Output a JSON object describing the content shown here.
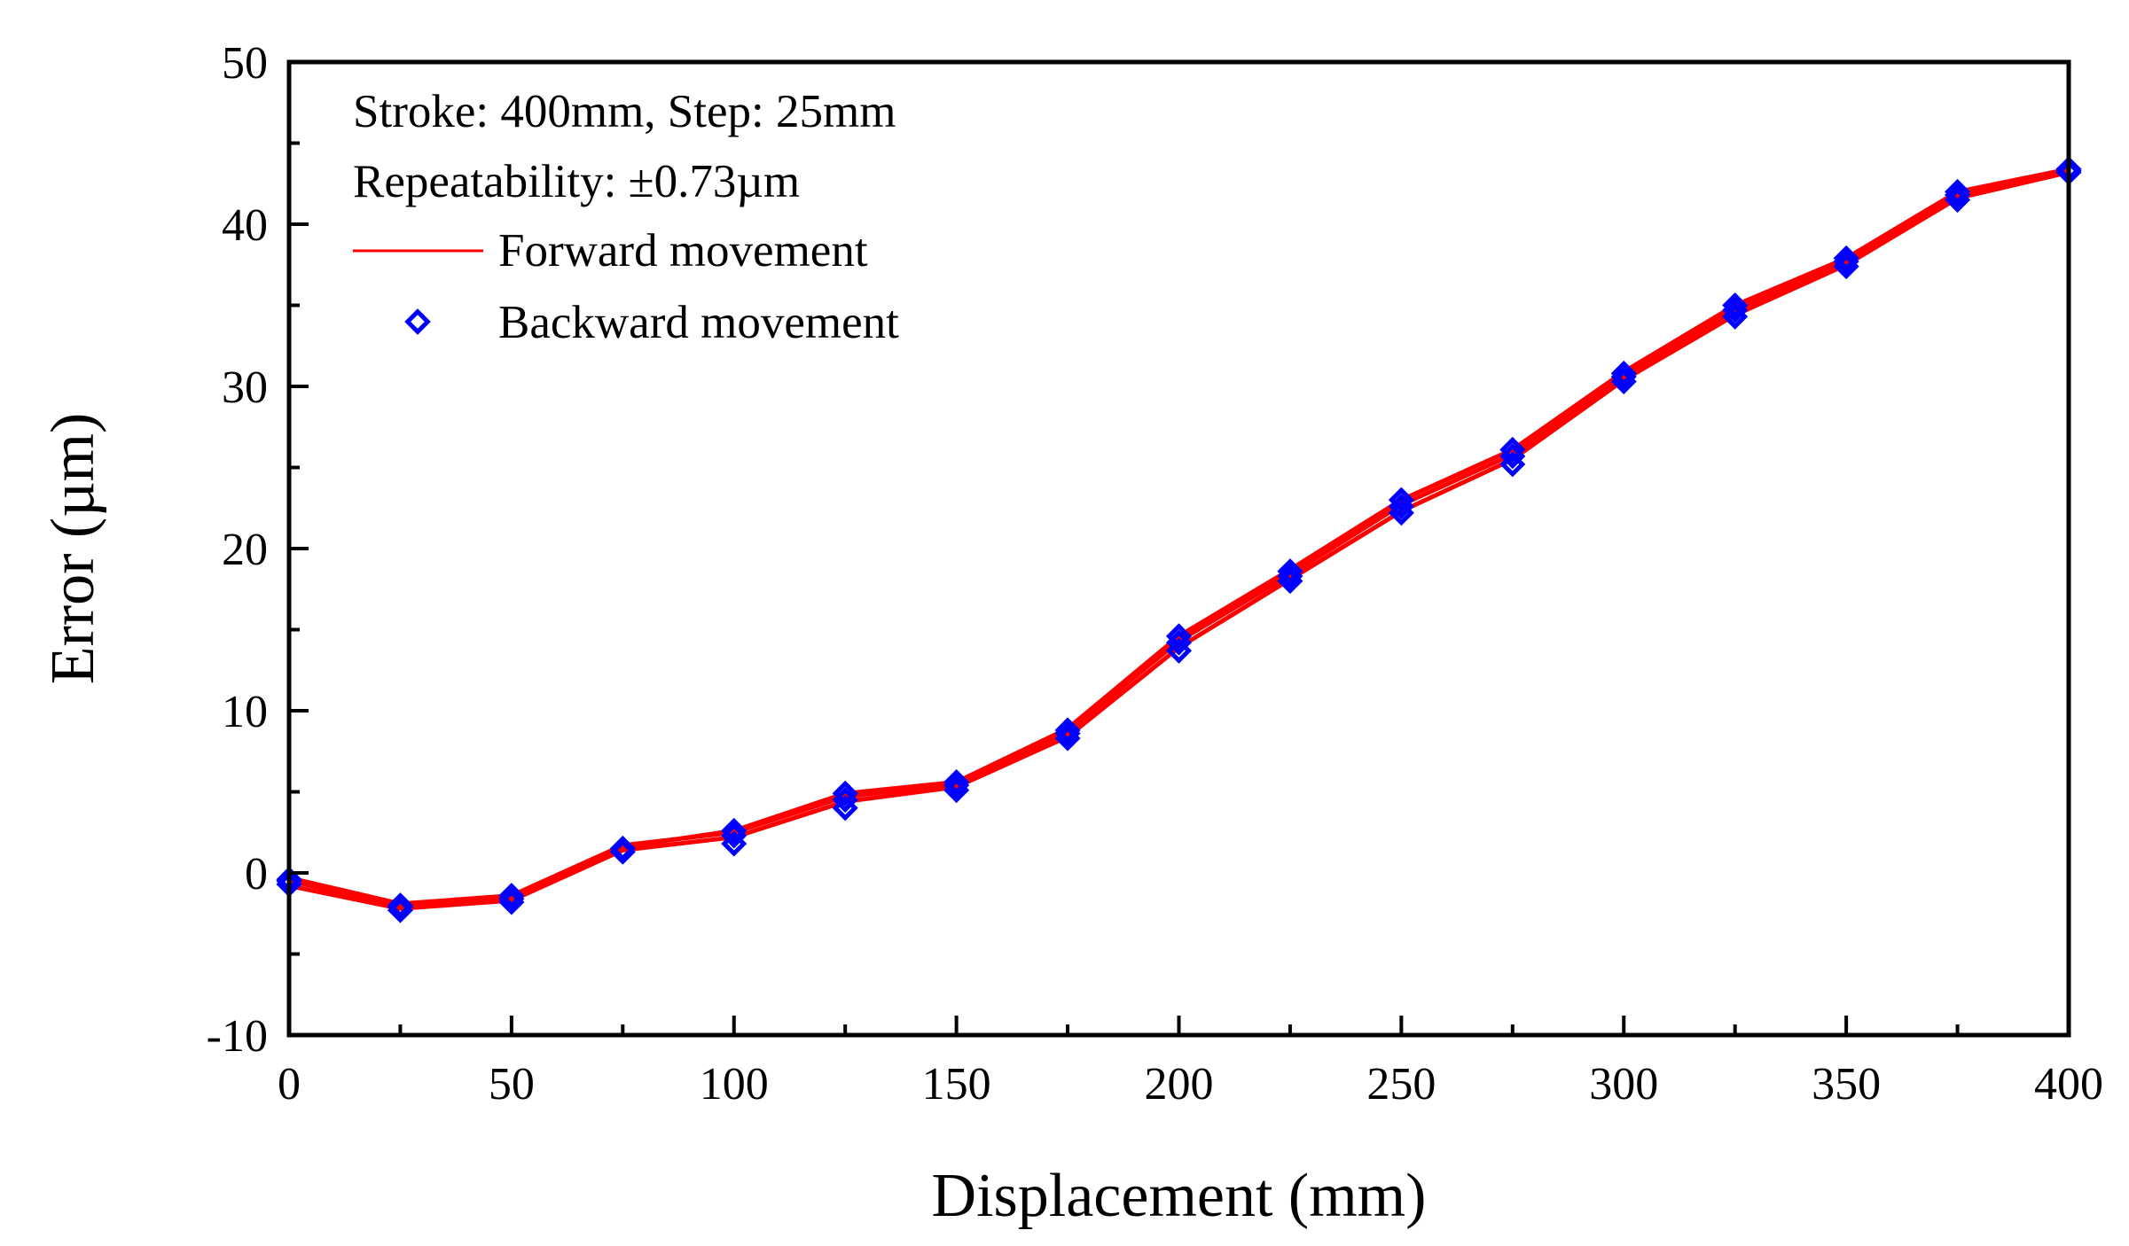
{
  "chart_data": {
    "type": "line",
    "xlabel": "Displacement (mm)",
    "ylabel": "Error (µm)",
    "xlim": [
      0,
      400
    ],
    "ylim": [
      -10,
      50
    ],
    "x_ticks": [
      0,
      50,
      100,
      150,
      200,
      250,
      300,
      350,
      400
    ],
    "y_ticks": [
      -10,
      0,
      10,
      20,
      30,
      40,
      50
    ],
    "grid": false,
    "annotations": [
      "Stroke: 400mm, Step: 25mm",
      "Repeatability: ±0.73µm"
    ],
    "legend": {
      "placement": "top-left",
      "entries": [
        {
          "label": "Forward movement",
          "marker": "line",
          "color": "#ff0000"
        },
        {
          "label": "Backward movement",
          "marker": "diamond",
          "color": "#0000ff"
        }
      ]
    },
    "x": [
      0,
      25,
      50,
      75,
      100,
      125,
      150,
      175,
      200,
      225,
      250,
      275,
      300,
      325,
      350,
      375,
      400
    ],
    "series": [
      {
        "name": "Forward movement run 1",
        "color": "#ff0000",
        "values": [
          -0.5,
          -2.0,
          -1.5,
          1.6,
          2.6,
          4.9,
          5.6,
          8.9,
          14.6,
          18.7,
          23.0,
          26.1,
          30.9,
          35.0,
          37.9,
          42.0,
          43.4
        ]
      },
      {
        "name": "Forward movement run 2",
        "color": "#ff0000",
        "values": [
          -0.8,
          -2.2,
          -1.7,
          1.4,
          2.2,
          4.4,
          5.3,
          8.4,
          13.9,
          18.1,
          22.3,
          25.5,
          30.4,
          34.4,
          37.5,
          41.6,
          43.2
        ]
      },
      {
        "name": "Forward movement run 3",
        "color": "#ff0000",
        "values": [
          -0.3,
          -1.9,
          -1.4,
          1.7,
          2.5,
          4.7,
          5.5,
          8.7,
          14.3,
          18.4,
          22.7,
          25.8,
          30.7,
          34.7,
          37.7,
          41.8,
          43.3
        ]
      },
      {
        "name": "Backward movement run 1",
        "color": "#0000ff",
        "values": [
          -0.4,
          -2.0,
          -1.4,
          1.5,
          2.6,
          4.9,
          5.6,
          8.8,
          14.6,
          18.6,
          23.0,
          26.1,
          30.8,
          35.0,
          37.9,
          42.0,
          43.4
        ]
      },
      {
        "name": "Backward movement run 2",
        "color": "#0000ff",
        "values": [
          -0.7,
          -2.3,
          -1.8,
          1.3,
          1.8,
          4.0,
          5.1,
          8.3,
          13.7,
          18.0,
          22.2,
          25.2,
          30.3,
          34.3,
          37.4,
          41.5,
          43.2
        ]
      },
      {
        "name": "Backward movement run 3",
        "color": "#0000ff",
        "values": [
          -0.5,
          -2.1,
          -1.6,
          1.5,
          2.3,
          4.5,
          5.4,
          8.6,
          14.2,
          18.3,
          22.6,
          25.7,
          30.6,
          34.7,
          37.7,
          41.8,
          43.3
        ]
      }
    ]
  }
}
